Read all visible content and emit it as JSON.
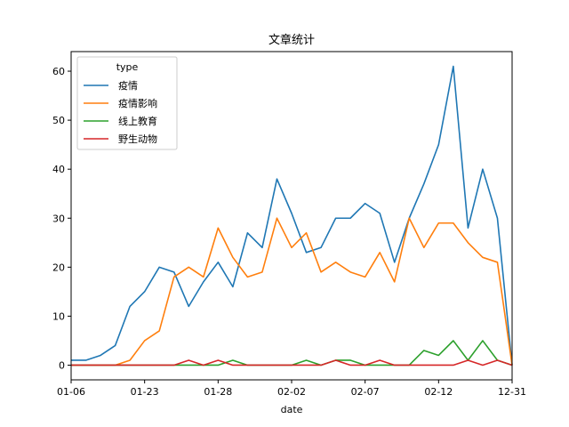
{
  "chart_data": {
    "type": "line",
    "title": "文章统计",
    "xlabel": "date",
    "ylabel": "",
    "ylim": [
      -3,
      64
    ],
    "yticks": [
      0,
      10,
      20,
      30,
      40,
      50,
      60
    ],
    "xtick_labels": [
      {
        "index": 0,
        "label": "01-06"
      },
      {
        "index": 5,
        "label": "01-23"
      },
      {
        "index": 10,
        "label": "01-28"
      },
      {
        "index": 15,
        "label": "02-02"
      },
      {
        "index": 20,
        "label": "02-07"
      },
      {
        "index": 25,
        "label": "02-12"
      },
      {
        "index": 30,
        "label": "12-31"
      }
    ],
    "x_count": 31,
    "grid": false,
    "legend": {
      "title": "type",
      "placement": "top-left"
    },
    "series": [
      {
        "name": "疫情",
        "color": "#1f77b4",
        "values": [
          1,
          1,
          2,
          4,
          12,
          15,
          20,
          19,
          12,
          17,
          21,
          16,
          27,
          24,
          38,
          31,
          23,
          24,
          30,
          30,
          33,
          31,
          21,
          30,
          37,
          45,
          61,
          28,
          40,
          30,
          0
        ]
      },
      {
        "name": "疫情影响",
        "color": "#ff7f0e",
        "values": [
          0,
          0,
          0,
          0,
          1,
          5,
          7,
          18,
          20,
          18,
          28,
          22,
          18,
          19,
          30,
          24,
          27,
          19,
          21,
          19,
          18,
          23,
          17,
          30,
          24,
          29,
          29,
          25,
          22,
          21,
          0
        ]
      },
      {
        "name": "线上教育",
        "color": "#2ca02c",
        "values": [
          0,
          0,
          0,
          0,
          0,
          0,
          0,
          0,
          0,
          0,
          0,
          1,
          0,
          0,
          0,
          0,
          1,
          0,
          1,
          1,
          0,
          0,
          0,
          0,
          3,
          2,
          5,
          1,
          5,
          1,
          0
        ]
      },
      {
        "name": "野生动物",
        "color": "#d62728",
        "values": [
          0,
          0,
          0,
          0,
          0,
          0,
          0,
          0,
          1,
          0,
          1,
          0,
          0,
          0,
          0,
          0,
          0,
          0,
          1,
          0,
          0,
          1,
          0,
          0,
          0,
          0,
          0,
          1,
          0,
          1,
          0
        ]
      }
    ]
  }
}
